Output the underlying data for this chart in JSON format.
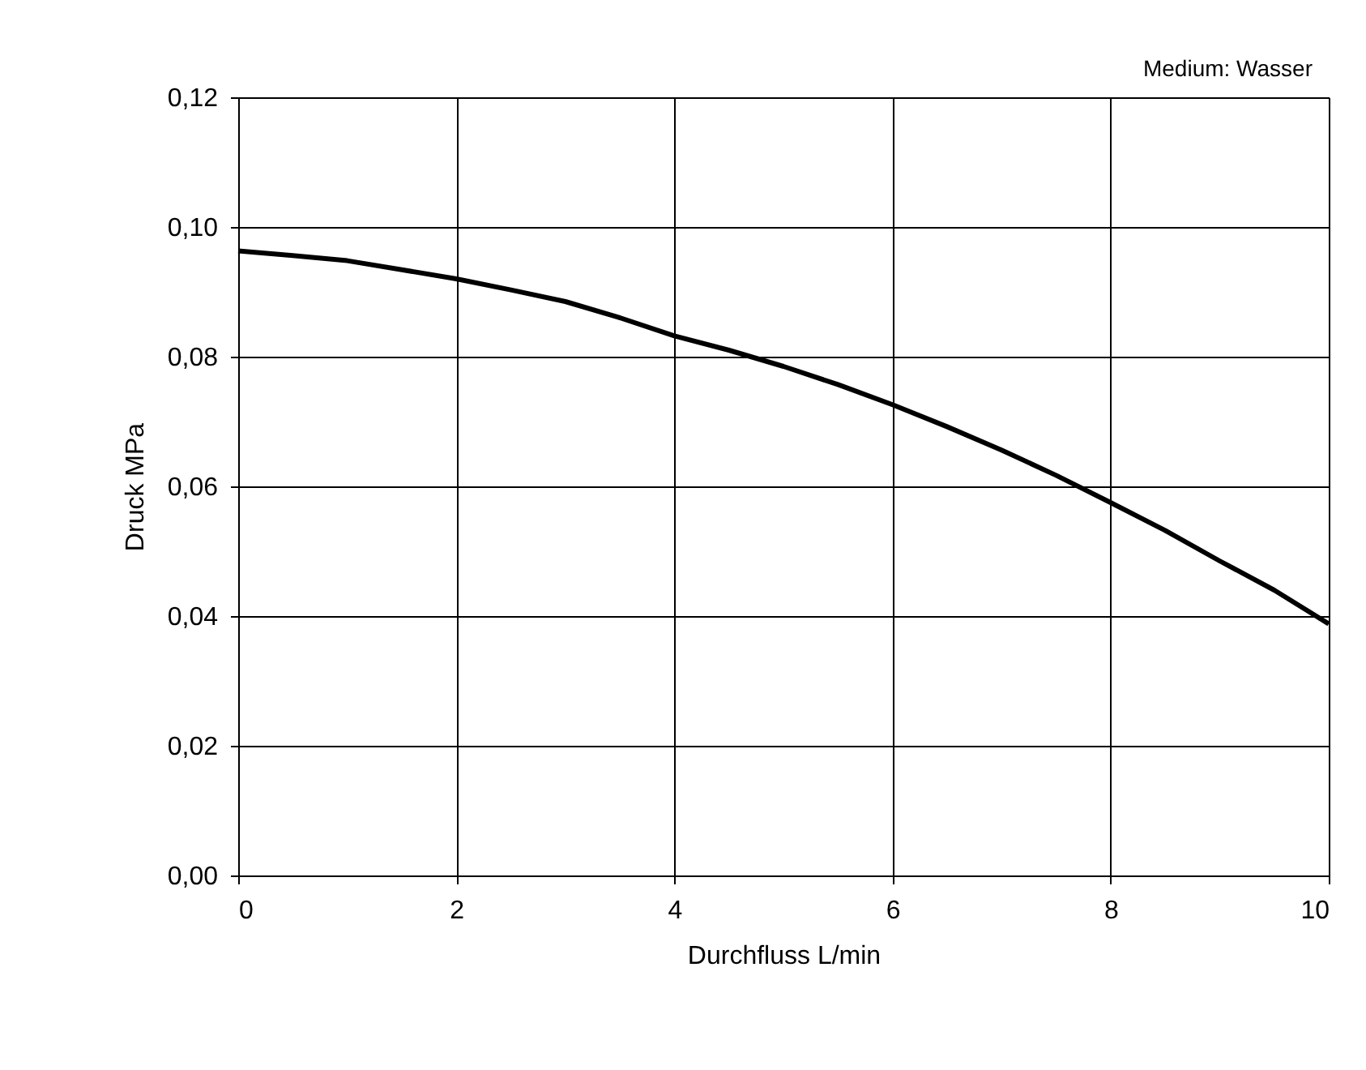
{
  "chart_data": {
    "type": "line",
    "xlabel": "Durchfluss L/min",
    "ylabel": "Druck MPa",
    "annotations": [
      "Medium: Wasser"
    ],
    "series": [
      {
        "color": "#000000",
        "x": [
          0,
          0.5,
          1,
          1.5,
          2,
          2.5,
          3,
          3.5,
          4,
          4.5,
          5,
          5.5,
          6,
          6.5,
          7,
          7.5,
          8,
          8.5,
          9,
          9.5,
          10
        ],
        "values": [
          0.0963,
          0.0956,
          0.0948,
          0.0934,
          0.092,
          0.0903,
          0.0885,
          0.086,
          0.0832,
          0.081,
          0.0785,
          0.0757,
          0.0726,
          0.0692,
          0.0656,
          0.0617,
          0.0575,
          0.0532,
          0.0485,
          0.044,
          0.0388
        ]
      }
    ],
    "xlim": [
      0,
      10
    ],
    "xticks": [
      0,
      2,
      4,
      6,
      8,
      10
    ],
    "ylim": [
      0,
      0.12
    ],
    "yticks": [
      {
        "value": 0,
        "label": "0,00"
      },
      {
        "value": 0.02,
        "label": "0,02"
      },
      {
        "value": 0.04,
        "label": "0,04"
      },
      {
        "value": 0.06,
        "label": "0,06"
      },
      {
        "value": 0.08,
        "label": "0,08"
      },
      {
        "value": 0.1,
        "label": "0,10"
      },
      {
        "value": 0.12,
        "label": "0,12"
      }
    ],
    "grid": true,
    "marker": "none",
    "line_style": "solid"
  }
}
